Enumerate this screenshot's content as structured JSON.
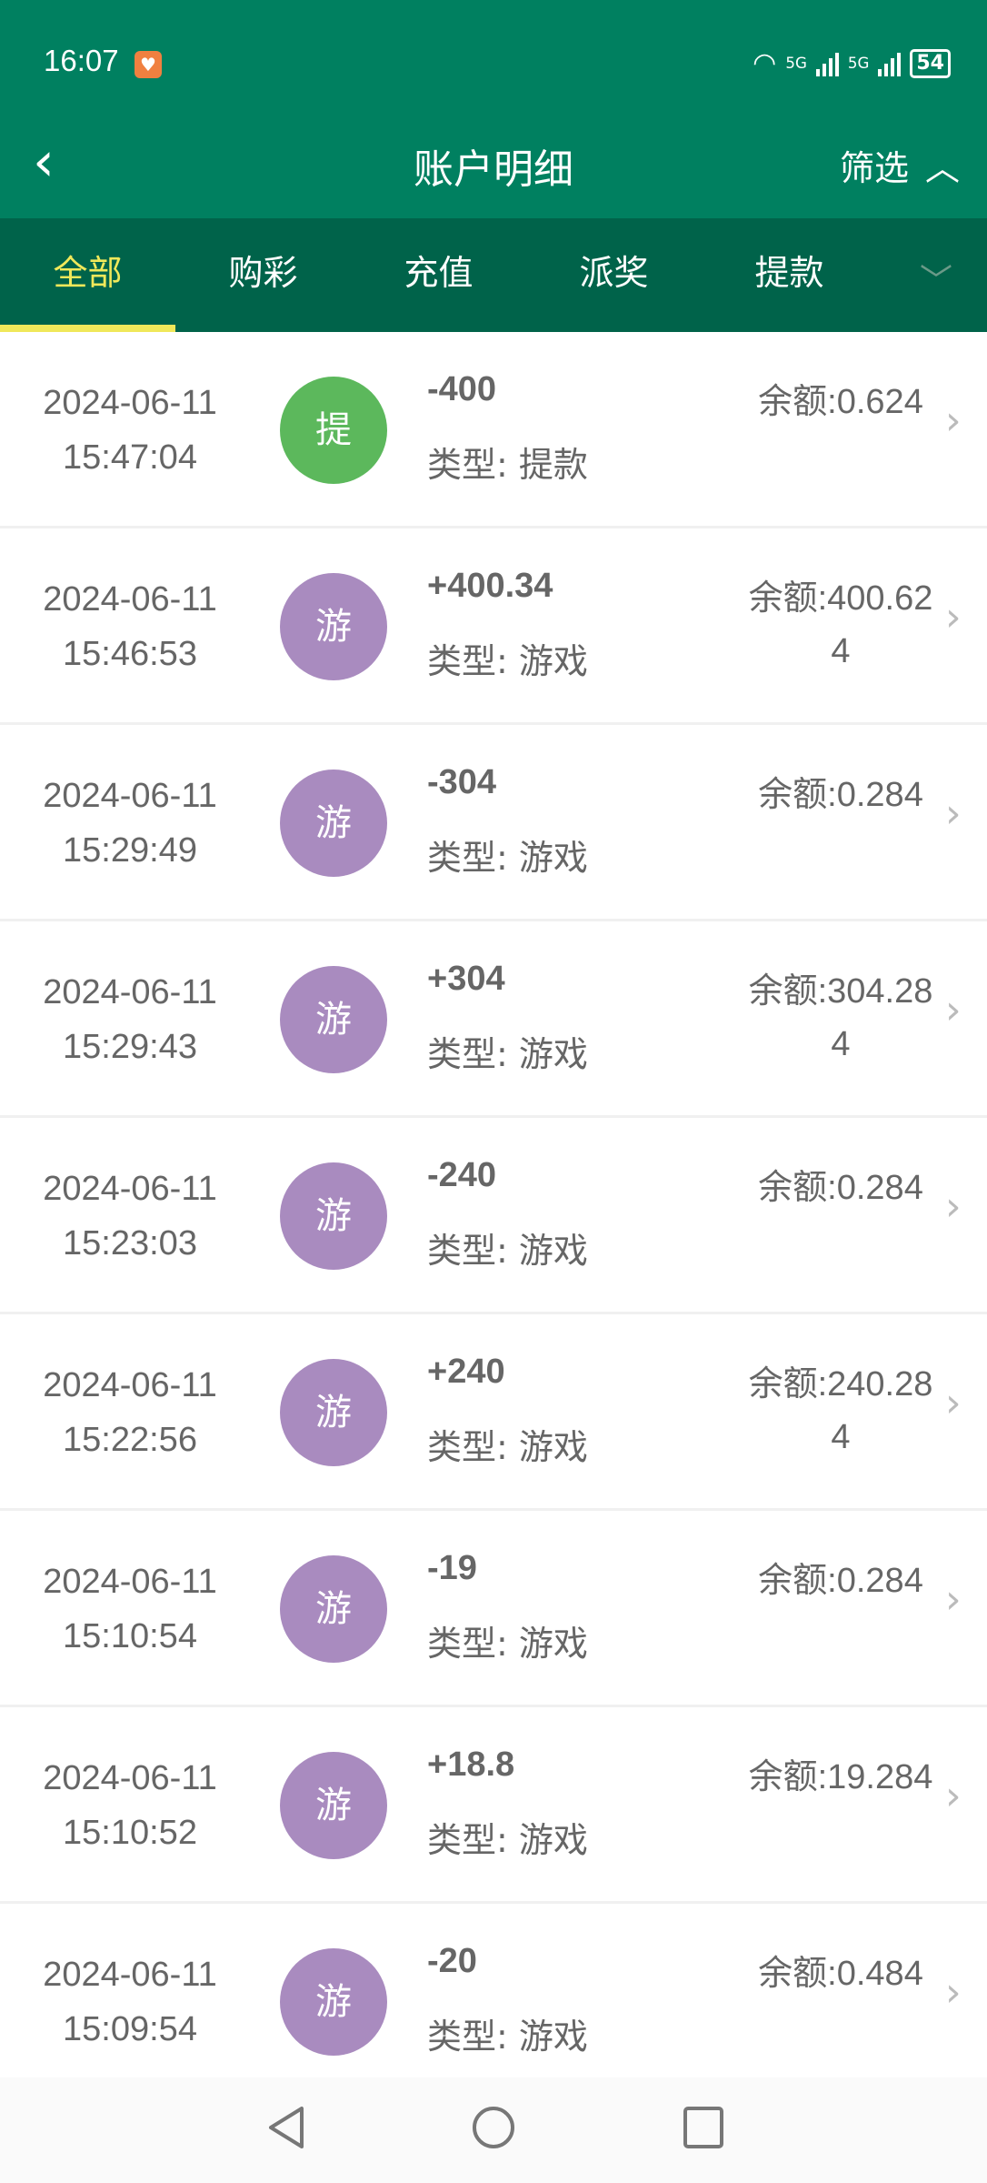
{
  "status_bar": {
    "time": "16:07",
    "network_1": "5G",
    "network_2": "5G",
    "battery": "54"
  },
  "header": {
    "title": "账户明细",
    "filter_label": "筛选"
  },
  "tabs": [
    {
      "label": "全部",
      "active": true
    },
    {
      "label": "购彩"
    },
    {
      "label": "充值"
    },
    {
      "label": "派奖"
    },
    {
      "label": "提款"
    }
  ],
  "colors": {
    "header": "#008060",
    "tabbar": "#00634a",
    "active_tab": "#f0e85a",
    "withdraw_badge": "#5cb85c",
    "game_badge": "#a98bbf"
  },
  "records": [
    {
      "date": "2024-06-11",
      "time": "15:47:04",
      "badge": "提",
      "badge_color": "#5cb85c",
      "amount": "-400",
      "type": "类型: 提款",
      "balance": "余额:0.624"
    },
    {
      "date": "2024-06-11",
      "time": "15:46:53",
      "badge": "游",
      "badge_color": "#a98bbf",
      "amount": "+400.34",
      "type": "类型: 游戏",
      "balance": "余额:400.624"
    },
    {
      "date": "2024-06-11",
      "time": "15:29:49",
      "badge": "游",
      "badge_color": "#a98bbf",
      "amount": "-304",
      "type": "类型: 游戏",
      "balance": "余额:0.284"
    },
    {
      "date": "2024-06-11",
      "time": "15:29:43",
      "badge": "游",
      "badge_color": "#a98bbf",
      "amount": "+304",
      "type": "类型: 游戏",
      "balance": "余额:304.284"
    },
    {
      "date": "2024-06-11",
      "time": "15:23:03",
      "badge": "游",
      "badge_color": "#a98bbf",
      "amount": "-240",
      "type": "类型: 游戏",
      "balance": "余额:0.284"
    },
    {
      "date": "2024-06-11",
      "time": "15:22:56",
      "badge": "游",
      "badge_color": "#a98bbf",
      "amount": "+240",
      "type": "类型: 游戏",
      "balance": "余额:240.284"
    },
    {
      "date": "2024-06-11",
      "time": "15:10:54",
      "badge": "游",
      "badge_color": "#a98bbf",
      "amount": "-19",
      "type": "类型: 游戏",
      "balance": "余额:0.284"
    },
    {
      "date": "2024-06-11",
      "time": "15:10:52",
      "badge": "游",
      "badge_color": "#a98bbf",
      "amount": "+18.8",
      "type": "类型: 游戏",
      "balance": "余额:19.284"
    },
    {
      "date": "2024-06-11",
      "time": "15:09:54",
      "badge": "游",
      "badge_color": "#a98bbf",
      "amount": "-20",
      "type": "类型: 游戏",
      "balance": "余额:0.484"
    }
  ]
}
